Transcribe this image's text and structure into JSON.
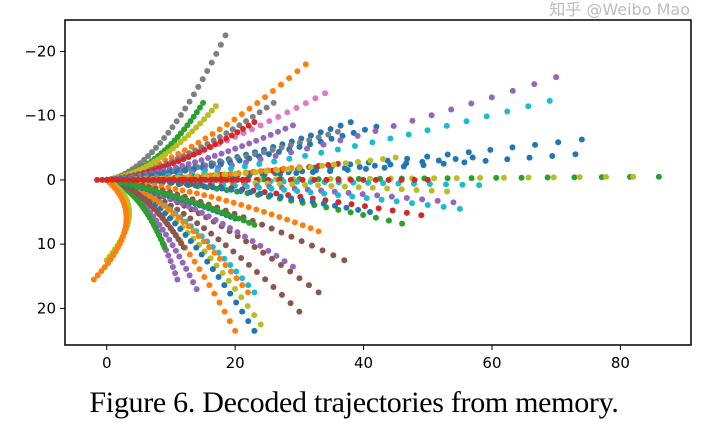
{
  "chart_data": {
    "type": "scatter",
    "title": "",
    "xlabel": "",
    "ylabel": "",
    "xlim": [
      -6.5,
      91
    ],
    "ylim": [
      25.7,
      -24.9
    ],
    "y_inverted": true,
    "grid": false,
    "xticks": [
      0,
      20,
      40,
      60,
      80
    ],
    "yticks": [
      -20,
      -10,
      0,
      10,
      20
    ],
    "xtick_labels": [
      "0",
      "20",
      "40",
      "60",
      "80"
    ],
    "ytick_labels": [
      "−20",
      "−10",
      "0",
      "10",
      "20"
    ],
    "points_per_trajectory": 30,
    "trajectories": [
      {
        "color": "#7f7f7f",
        "start": [
          0,
          0
        ],
        "control": [
          8,
          -1
        ],
        "end": [
          18.5,
          -22.5
        ]
      },
      {
        "color": "#ff7f0e",
        "start": [
          0,
          0
        ],
        "control": [
          12,
          -2
        ],
        "end": [
          31,
          -18
        ]
      },
      {
        "color": "#e377c2",
        "start": [
          0,
          0
        ],
        "control": [
          12,
          -2
        ],
        "end": [
          34,
          -13.5
        ]
      },
      {
        "color": "#7f7f7f",
        "start": [
          0,
          0
        ],
        "control": [
          10,
          -1
        ],
        "end": [
          26,
          -12
        ]
      },
      {
        "color": "#2ca02c",
        "start": [
          0,
          0
        ],
        "control": [
          8,
          -1
        ],
        "end": [
          15,
          -12
        ]
      },
      {
        "color": "#bcbd22",
        "start": [
          0,
          0
        ],
        "control": [
          8,
          -1
        ],
        "end": [
          17,
          -11.5
        ]
      },
      {
        "color": "#d62728",
        "start": [
          0,
          0
        ],
        "control": [
          10,
          -1
        ],
        "end": [
          23,
          -9
        ]
      },
      {
        "color": "#9467bd",
        "start": [
          0,
          0
        ],
        "control": [
          12,
          -1
        ],
        "end": [
          29,
          -8.5
        ]
      },
      {
        "color": "#1f77b4",
        "start": [
          0,
          0
        ],
        "control": [
          15,
          -1
        ],
        "end": [
          38,
          -9
        ]
      },
      {
        "color": "#7f7f7f",
        "start": [
          0,
          0
        ],
        "control": [
          14,
          -1
        ],
        "end": [
          36,
          -7.5
        ]
      },
      {
        "color": "#1f77b4",
        "start": [
          0,
          0
        ],
        "control": [
          16,
          -1
        ],
        "end": [
          42,
          -8.3
        ]
      },
      {
        "color": "#9467bd",
        "start": [
          0,
          0
        ],
        "control": [
          20,
          0
        ],
        "end": [
          70,
          -16
        ]
      },
      {
        "color": "#17becf",
        "start": [
          0,
          0
        ],
        "control": [
          20,
          0
        ],
        "end": [
          69,
          -12.3
        ]
      },
      {
        "color": "#1f77b4",
        "start": [
          0,
          0
        ],
        "control": [
          20,
          0
        ],
        "end": [
          74,
          -6.3
        ]
      },
      {
        "color": "#1f77b4",
        "start": [
          0,
          0
        ],
        "control": [
          20,
          0
        ],
        "end": [
          73,
          -4
        ]
      },
      {
        "color": "#1f77b4",
        "start": [
          0,
          0
        ],
        "control": [
          18,
          0
        ],
        "end": [
          57,
          -3.5
        ]
      },
      {
        "color": "#d62728",
        "start": [
          0,
          0
        ],
        "control": [
          14,
          0
        ],
        "end": [
          36,
          -2.5
        ]
      },
      {
        "color": "#ff7f0e",
        "start": [
          0,
          0
        ],
        "control": [
          12,
          0
        ],
        "end": [
          30,
          -2
        ]
      },
      {
        "color": "#bcbd22",
        "start": [
          0,
          0
        ],
        "control": [
          16,
          0
        ],
        "end": [
          45,
          -3.5
        ]
      },
      {
        "color": "#2ca02c",
        "start": [
          0,
          0
        ],
        "control": [
          20,
          0
        ],
        "end": [
          86,
          -0.5
        ]
      },
      {
        "color": "#bcbd22",
        "start": [
          0,
          0
        ],
        "control": [
          20,
          0
        ],
        "end": [
          82,
          -0.5
        ]
      },
      {
        "color": "#17becf",
        "start": [
          0,
          0
        ],
        "control": [
          20,
          0
        ],
        "end": [
          58,
          0.8
        ]
      },
      {
        "color": "#d62728",
        "start": [
          0,
          0
        ],
        "control": [
          20,
          0
        ],
        "end": [
          50,
          0
        ]
      },
      {
        "color": "#bcbd22",
        "start": [
          0,
          0
        ],
        "control": [
          18,
          0
        ],
        "end": [
          53,
          1.8
        ]
      },
      {
        "color": "#9467bd",
        "start": [
          0,
          0
        ],
        "control": [
          18,
          0
        ],
        "end": [
          54,
          3.5
        ]
      },
      {
        "color": "#17becf",
        "start": [
          0,
          0
        ],
        "control": [
          18,
          0
        ],
        "end": [
          55,
          4.5
        ]
      },
      {
        "color": "#d62728",
        "start": [
          0,
          0
        ],
        "control": [
          16,
          0
        ],
        "end": [
          49,
          5.5
        ]
      },
      {
        "color": "#2ca02c",
        "start": [
          0,
          0
        ],
        "control": [
          16,
          0
        ],
        "end": [
          46,
          6.8
        ]
      },
      {
        "color": "#1f77b4",
        "start": [
          0,
          0
        ],
        "control": [
          14,
          0
        ],
        "end": [
          41,
          5
        ]
      },
      {
        "color": "#ff7f0e",
        "start": [
          0,
          0
        ],
        "control": [
          15,
          1
        ],
        "end": [
          33,
          8
        ]
      },
      {
        "color": "#8c564b",
        "start": [
          0,
          0
        ],
        "control": [
          12,
          1
        ],
        "end": [
          37,
          12.5
        ]
      },
      {
        "color": "#8c564b",
        "start": [
          0,
          0
        ],
        "control": [
          11,
          1
        ],
        "end": [
          33,
          17.5
        ]
      },
      {
        "color": "#9467bd",
        "start": [
          0,
          0
        ],
        "control": [
          10,
          1
        ],
        "end": [
          29,
          13.5
        ]
      },
      {
        "color": "#8c564b",
        "start": [
          0,
          0
        ],
        "control": [
          10,
          1
        ],
        "end": [
          30,
          20.5
        ]
      },
      {
        "color": "#bcbd22",
        "start": [
          0,
          0
        ],
        "control": [
          9,
          1
        ],
        "end": [
          24,
          22.5
        ]
      },
      {
        "color": "#1f77b4",
        "start": [
          0,
          0
        ],
        "control": [
          9,
          1
        ],
        "end": [
          23,
          23.5
        ]
      },
      {
        "color": "#ff7f0e",
        "start": [
          0,
          0
        ],
        "control": [
          8,
          1
        ],
        "end": [
          20,
          23.5
        ]
      },
      {
        "color": "#17becf",
        "start": [
          0,
          0
        ],
        "control": [
          9,
          1
        ],
        "end": [
          23,
          17.5
        ]
      },
      {
        "color": "#ff7f0e",
        "start": [
          0,
          0
        ],
        "control": [
          9,
          1
        ],
        "end": [
          22,
          17.5
        ]
      },
      {
        "color": "#9467bd",
        "start": [
          0,
          0
        ],
        "control": [
          6,
          1
        ],
        "end": [
          14,
          17
        ]
      },
      {
        "color": "#9467bd",
        "start": [
          0,
          0
        ],
        "control": [
          6,
          1
        ],
        "end": [
          11,
          15.5
        ]
      },
      {
        "color": "#2ca02c",
        "start": [
          0,
          0
        ],
        "control": [
          5,
          1
        ],
        "end": [
          9,
          10.5
        ]
      },
      {
        "color": "#8c564b",
        "start": [
          0,
          0
        ],
        "control": [
          6,
          1
        ],
        "end": [
          12,
          10.5
        ]
      },
      {
        "color": "#1f77b4",
        "start": [
          0,
          0
        ],
        "control": [
          10,
          2
        ],
        "end": [
          20,
          6
        ]
      },
      {
        "color": "#2ca02c",
        "start": [
          0,
          0
        ],
        "control": [
          11,
          2
        ],
        "end": [
          23,
          7
        ]
      },
      {
        "color": "#bcbd22",
        "start": [
          0,
          0
        ],
        "control": [
          7,
          4
        ],
        "end": [
          0,
          12.5
        ]
      },
      {
        "color": "#ff7f0e",
        "start": [
          0,
          0
        ],
        "control": [
          7,
          6
        ],
        "end": [
          -2,
          15.5
        ]
      },
      {
        "color": "#d62728",
        "start": [
          -1.5,
          0
        ],
        "control": [
          10,
          0
        ],
        "end": [
          22,
          0
        ]
      }
    ]
  },
  "caption": "Figure 6. Decoded trajectories from memory.",
  "watermark": "知乎 @Weibo Mao"
}
